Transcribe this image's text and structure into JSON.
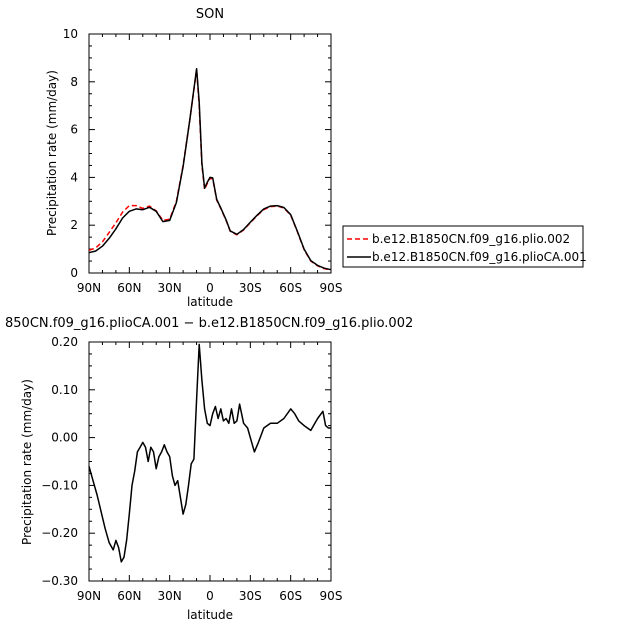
{
  "chart_data": [
    {
      "type": "line",
      "title": "SON",
      "xlabel": "latitude",
      "ylabel": "Precipitation rate (mm/day)",
      "xlim": [
        90,
        -90
      ],
      "ylim": [
        0,
        10
      ],
      "xticks": [
        90,
        60,
        30,
        0,
        -30,
        -60,
        -90
      ],
      "xtick_labels": [
        "90N",
        "60N",
        "30N",
        "0",
        "30S",
        "60S",
        "90S"
      ],
      "yticks": [
        0,
        2,
        4,
        6,
        8,
        10
      ],
      "ytick_labels": [
        "0",
        "2",
        "4",
        "6",
        "8",
        "10"
      ],
      "legend_position": "right",
      "series": [
        {
          "name": "b.e12.B1850CN.f09_g16.plio.002",
          "color": "#ff0000",
          "dash": "dashed",
          "x": [
            90,
            85,
            80,
            75,
            70,
            65,
            60,
            55,
            50,
            45,
            40,
            35,
            30,
            25,
            20,
            15,
            10,
            8,
            6,
            4,
            2,
            0,
            -2,
            -5,
            -8,
            -12,
            -15,
            -20,
            -25,
            -30,
            -35,
            -40,
            -45,
            -50,
            -55,
            -60,
            -65,
            -70,
            -75,
            -80,
            -85,
            -90
          ],
          "y": [
            0.95,
            1.05,
            1.3,
            1.7,
            2.1,
            2.55,
            2.82,
            2.82,
            2.7,
            2.8,
            2.6,
            2.2,
            2.25,
            3.0,
            4.5,
            6.4,
            8.5,
            7.0,
            4.5,
            3.5,
            3.75,
            3.95,
            3.95,
            3.05,
            2.7,
            2.2,
            1.75,
            1.6,
            1.8,
            2.1,
            2.4,
            2.65,
            2.78,
            2.8,
            2.72,
            2.42,
            1.72,
            0.98,
            0.5,
            0.3,
            0.18,
            0.12
          ]
        },
        {
          "name": "b.e12.B1850CN.f09_g16.plioCA.001",
          "color": "#000000",
          "dash": "solid",
          "x": [
            90,
            85,
            80,
            75,
            70,
            65,
            60,
            55,
            50,
            45,
            40,
            35,
            30,
            25,
            20,
            15,
            10,
            8,
            6,
            4,
            2,
            0,
            -2,
            -5,
            -8,
            -12,
            -15,
            -20,
            -25,
            -30,
            -35,
            -40,
            -45,
            -50,
            -55,
            -60,
            -65,
            -70,
            -75,
            -80,
            -85,
            -90
          ],
          "y": [
            0.85,
            0.92,
            1.12,
            1.45,
            1.85,
            2.3,
            2.58,
            2.68,
            2.65,
            2.75,
            2.58,
            2.15,
            2.2,
            2.95,
            4.45,
            6.4,
            8.55,
            7.15,
            4.6,
            3.55,
            3.8,
            4.0,
            3.98,
            3.08,
            2.72,
            2.22,
            1.76,
            1.62,
            1.82,
            2.12,
            2.42,
            2.68,
            2.8,
            2.82,
            2.74,
            2.44,
            1.74,
            1.0,
            0.52,
            0.32,
            0.2,
            0.14
          ]
        }
      ]
    },
    {
      "type": "line",
      "title": "850CN.f09_g16.plioCA.001 − b.e12.B1850CN.f09_g16.plio.002",
      "xlabel": "latitude",
      "ylabel": "Precipitation rate (mm/day)",
      "xlim": [
        90,
        -90
      ],
      "ylim": [
        -0.3,
        0.2
      ],
      "xticks": [
        90,
        60,
        30,
        0,
        -30,
        -60,
        -90
      ],
      "xtick_labels": [
        "90N",
        "60N",
        "30N",
        "0",
        "30S",
        "60S",
        "90S"
      ],
      "yticks": [
        -0.3,
        -0.2,
        -0.1,
        0,
        0.1,
        0.2
      ],
      "ytick_labels": [
        "−0.30",
        "−0.20",
        "−0.10",
        "0.00",
        "0.10",
        "0.20"
      ],
      "series": [
        {
          "color": "#000000",
          "x": [
            90,
            87,
            84,
            81,
            78,
            75,
            72,
            70,
            68,
            66,
            64,
            62,
            60,
            58,
            56,
            54,
            52,
            50,
            48,
            46,
            44,
            42,
            40,
            38,
            36,
            34,
            32,
            30,
            28,
            26,
            24,
            22,
            20,
            18,
            16,
            14,
            12,
            10,
            8,
            6,
            4,
            2,
            0,
            -2,
            -4,
            -6,
            -8,
            -10,
            -12,
            -14,
            -16,
            -18,
            -20,
            -22,
            -25,
            -28,
            -30,
            -33,
            -36,
            -40,
            -45,
            -50,
            -55,
            -60,
            -63,
            -66,
            -70,
            -75,
            -80,
            -84,
            -86,
            -88,
            -90
          ],
          "y": [
            -0.06,
            -0.09,
            -0.12,
            -0.155,
            -0.19,
            -0.22,
            -0.235,
            -0.215,
            -0.23,
            -0.26,
            -0.25,
            -0.215,
            -0.16,
            -0.1,
            -0.07,
            -0.03,
            -0.02,
            -0.01,
            -0.02,
            -0.05,
            -0.02,
            -0.03,
            -0.065,
            -0.04,
            -0.03,
            -0.015,
            -0.03,
            -0.04,
            -0.08,
            -0.1,
            -0.09,
            -0.125,
            -0.16,
            -0.14,
            -0.1,
            -0.055,
            -0.045,
            0.08,
            0.195,
            0.12,
            0.06,
            0.03,
            0.025,
            0.05,
            0.065,
            0.04,
            0.06,
            0.035,
            0.04,
            0.03,
            0.06,
            0.03,
            0.035,
            0.07,
            0.03,
            0.02,
            0.0,
            -0.03,
            -0.01,
            0.02,
            0.03,
            0.03,
            0.04,
            0.06,
            0.05,
            0.035,
            0.025,
            0.015,
            0.04,
            0.055,
            0.025,
            0.02,
            0.02
          ]
        }
      ]
    }
  ]
}
